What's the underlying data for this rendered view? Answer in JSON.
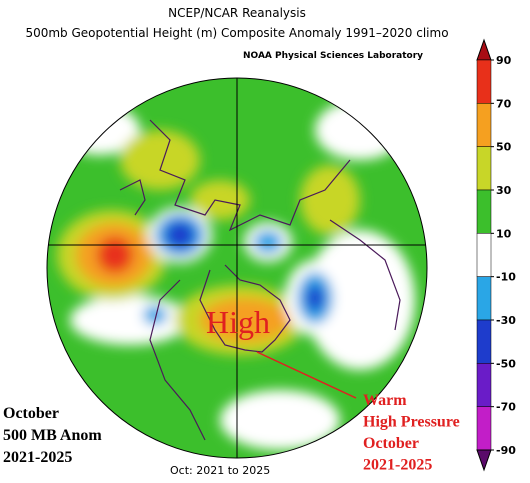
{
  "header": {
    "title": "NCEP/NCAR Reanalysis",
    "subtitle": "500mb Geopotential Height (m) Composite Anomaly 1991–2020 climo",
    "source": "NOAA Physical Sciences Laboratory"
  },
  "map": {
    "annotation": "High",
    "period": "Oct: 2021 to 2025"
  },
  "colorbar": {
    "ticks": [
      90,
      70,
      50,
      30,
      10,
      -10,
      -30,
      -50,
      -70,
      -90
    ],
    "colors": [
      "#a80c14",
      "#e8301a",
      "#f5a020",
      "#c8d628",
      "#3cbf2c",
      "#ffffff",
      "#2aa6e6",
      "#1e3ccc",
      "#6a1cc8",
      "#c21ec8",
      "#5a0a6a"
    ]
  },
  "notes": {
    "left": [
      "October",
      "500 MB Anom",
      "2021-2025"
    ],
    "right": [
      "Warm",
      "High Pressure",
      "October",
      "2021-2025"
    ]
  }
}
